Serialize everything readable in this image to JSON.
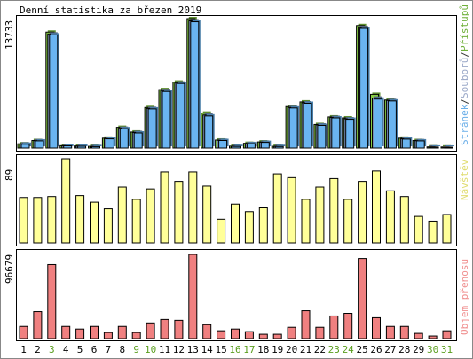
{
  "chart_data": [
    {
      "type": "bar",
      "title": "Denní statistika za březen 2019",
      "ymax_label": "13733",
      "ylim": [
        0,
        13733
      ],
      "grid": false,
      "legend": {
        "placement": "right-vertical",
        "parts": [
          {
            "text": "Stránek",
            "color": "#6aaee8"
          },
          {
            "text": "/",
            "color": "#333333"
          },
          {
            "text": "Souborů",
            "color": "#9aa8c8"
          },
          {
            "text": "/",
            "color": "#333333"
          },
          {
            "text": "Přístupů",
            "color": "#6fb03a"
          }
        ]
      },
      "categories": [
        "1",
        "2",
        "3",
        "4",
        "5",
        "6",
        "7",
        "8",
        "9",
        "10",
        "11",
        "12",
        "13",
        "14",
        "15",
        "16",
        "17",
        "18",
        "19",
        "20",
        "21",
        "22",
        "23",
        "24",
        "25",
        "26",
        "27",
        "28",
        "29",
        "30",
        "31"
      ],
      "series": [
        {
          "name": "Přístupů",
          "color": "#88cc44",
          "values": [
            450,
            800,
            12300,
            250,
            220,
            180,
            1050,
            2200,
            1700,
            4300,
            6200,
            7000,
            13733,
            3700,
            850,
            200,
            500,
            650,
            180,
            4400,
            4900,
            2500,
            3300,
            3200,
            13000,
            5700,
            5100,
            1050,
            800,
            120,
            110
          ]
        },
        {
          "name": "Souborů",
          "color": "#7a8fb5",
          "values": [
            430,
            780,
            12100,
            240,
            200,
            160,
            1000,
            2100,
            1650,
            4200,
            6100,
            6900,
            13500,
            3500,
            820,
            180,
            480,
            620,
            170,
            4300,
            4800,
            2450,
            3250,
            3100,
            12800,
            5300,
            5050,
            980,
            780,
            110,
            100
          ]
        },
        {
          "name": "Stránek",
          "color": "#6ab4f0",
          "values": [
            400,
            760,
            12000,
            230,
            190,
            150,
            980,
            2050,
            1600,
            4150,
            6000,
            6850,
            13400,
            3400,
            800,
            170,
            460,
            600,
            160,
            4250,
            4750,
            2400,
            3200,
            3050,
            12700,
            5200,
            5000,
            950,
            760,
            100,
            90
          ]
        }
      ]
    },
    {
      "type": "bar",
      "ymax_label": "89",
      "ylim": [
        0,
        89
      ],
      "legend": {
        "placement": "right-vertical",
        "parts": [
          {
            "text": "Návštěv",
            "color": "#e0dc70"
          }
        ]
      },
      "series": [
        {
          "name": "Návštěv",
          "color": "#ffff99",
          "values": [
            48,
            48,
            49,
            89,
            50,
            43,
            36,
            59,
            46,
            57,
            75,
            65,
            75,
            60,
            25,
            41,
            33,
            37,
            73,
            69,
            46,
            59,
            68,
            46,
            65,
            76,
            55,
            49,
            28,
            23,
            30
          ]
        }
      ]
    },
    {
      "type": "bar",
      "ymax_label": "96679",
      "ylim": [
        0,
        96679
      ],
      "legend": {
        "placement": "right-vertical",
        "parts": [
          {
            "text": "Objem přenosu",
            "color": "#f09090"
          }
        ]
      },
      "series": [
        {
          "name": "Objem přenosu",
          "color": "#f08080",
          "values": [
            14000,
            31000,
            85000,
            14000,
            11000,
            14000,
            7000,
            14000,
            7000,
            18000,
            22000,
            21000,
            96679,
            16000,
            9000,
            11000,
            8000,
            5000,
            5000,
            13000,
            32000,
            13000,
            26000,
            29000,
            92000,
            24000,
            14000,
            14000,
            6000,
            3000,
            9000
          ]
        }
      ]
    }
  ],
  "x_labels": [
    {
      "text": "1",
      "color": "#000000"
    },
    {
      "text": "2",
      "color": "#000000"
    },
    {
      "text": "3",
      "color": "#5a9e1e"
    },
    {
      "text": "4",
      "color": "#000000"
    },
    {
      "text": "5",
      "color": "#000000"
    },
    {
      "text": "6",
      "color": "#000000"
    },
    {
      "text": "7",
      "color": "#000000"
    },
    {
      "text": "8",
      "color": "#000000"
    },
    {
      "text": "9",
      "color": "#5a9e1e"
    },
    {
      "text": "10",
      "color": "#5a9e1e"
    },
    {
      "text": "11",
      "color": "#000000"
    },
    {
      "text": "12",
      "color": "#000000"
    },
    {
      "text": "13",
      "color": "#000000"
    },
    {
      "text": "14",
      "color": "#000000"
    },
    {
      "text": "15",
      "color": "#000000"
    },
    {
      "text": "16",
      "color": "#5a9e1e"
    },
    {
      "text": "17",
      "color": "#5a9e1e"
    },
    {
      "text": "18",
      "color": "#000000"
    },
    {
      "text": "19",
      "color": "#000000"
    },
    {
      "text": "20",
      "color": "#000000"
    },
    {
      "text": "21",
      "color": "#000000"
    },
    {
      "text": "22",
      "color": "#000000"
    },
    {
      "text": "23",
      "color": "#5a9e1e"
    },
    {
      "text": "24",
      "color": "#5a9e1e"
    },
    {
      "text": "25",
      "color": "#000000"
    },
    {
      "text": "26",
      "color": "#000000"
    },
    {
      "text": "27",
      "color": "#000000"
    },
    {
      "text": "28",
      "color": "#000000"
    },
    {
      "text": "29",
      "color": "#000000"
    },
    {
      "text": "30",
      "color": "#5a9e1e"
    },
    {
      "text": "31",
      "color": "#5a9e1e"
    }
  ]
}
